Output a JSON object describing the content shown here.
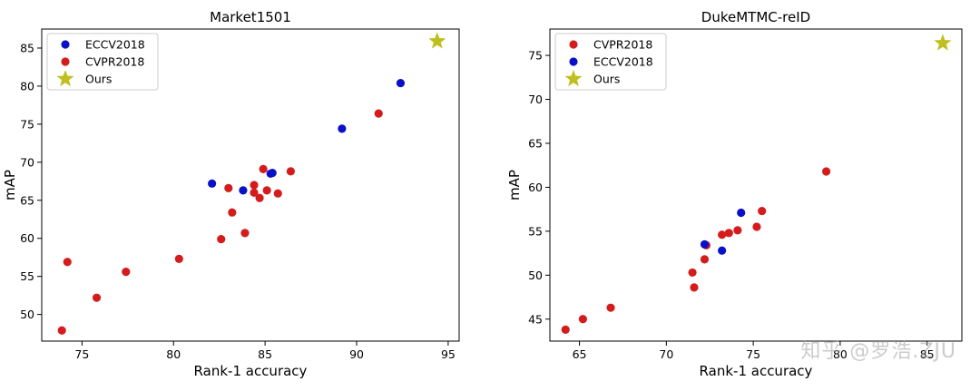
{
  "watermark": "知乎 @罗浩.ZJU",
  "chart_data": [
    {
      "type": "scatter",
      "title": "Market1501",
      "xlabel": "Rank-1 accuracy",
      "ylabel": "mAP",
      "xlim": [
        72.8,
        95.6
      ],
      "ylim": [
        46.5,
        87.5
      ],
      "xticks": [
        75,
        80,
        85,
        90,
        95
      ],
      "yticks": [
        50,
        55,
        60,
        65,
        70,
        75,
        80,
        85
      ],
      "legend_position": "top-left",
      "series": [
        {
          "name": "ECCV2018",
          "color": "#0a10c8",
          "marker": "circle",
          "points": [
            [
              82.1,
              67.2
            ],
            [
              83.8,
              66.3
            ],
            [
              85.3,
              68.5
            ],
            [
              85.4,
              68.6
            ],
            [
              89.2,
              74.4
            ],
            [
              92.4,
              80.4
            ]
          ]
        },
        {
          "name": "CVPR2018",
          "color": "#d41c1c",
          "marker": "circle",
          "points": [
            [
              73.9,
              47.9
            ],
            [
              74.2,
              56.9
            ],
            [
              75.8,
              52.2
            ],
            [
              77.4,
              55.6
            ],
            [
              80.3,
              57.3
            ],
            [
              82.6,
              59.9
            ],
            [
              83.0,
              66.6
            ],
            [
              83.2,
              63.4
            ],
            [
              83.9,
              60.7
            ],
            [
              84.4,
              66.0
            ],
            [
              84.4,
              67.0
            ],
            [
              84.7,
              65.3
            ],
            [
              84.9,
              69.1
            ],
            [
              85.1,
              66.3
            ],
            [
              85.7,
              65.9
            ],
            [
              86.4,
              68.8
            ],
            [
              91.2,
              76.4
            ]
          ]
        },
        {
          "name": "Ours",
          "color": "#bfbf1f",
          "marker": "star",
          "points": [
            [
              94.4,
              85.9
            ]
          ]
        }
      ]
    },
    {
      "type": "scatter",
      "title": "DukeMTMC-reID",
      "xlabel": "Rank-1 accuracy",
      "ylabel": "mAP",
      "xlim": [
        63.3,
        87.0
      ],
      "ylim": [
        42.5,
        78.0
      ],
      "xticks": [
        65,
        70,
        75,
        80,
        85
      ],
      "yticks": [
        45,
        50,
        55,
        60,
        65,
        70,
        75
      ],
      "legend_position": "top-left",
      "series": [
        {
          "name": "CVPR2018",
          "color": "#d41c1c",
          "marker": "circle",
          "points": [
            [
              64.2,
              43.8
            ],
            [
              65.2,
              45.0
            ],
            [
              66.8,
              46.3
            ],
            [
              71.5,
              50.3
            ],
            [
              71.6,
              48.6
            ],
            [
              72.2,
              51.8
            ],
            [
              72.3,
              53.4
            ],
            [
              73.2,
              54.6
            ],
            [
              73.6,
              54.8
            ],
            [
              74.1,
              55.1
            ],
            [
              75.2,
              55.5
            ],
            [
              75.5,
              57.3
            ],
            [
              79.2,
              61.8
            ]
          ]
        },
        {
          "name": "ECCV2018",
          "color": "#0a10c8",
          "marker": "circle",
          "points": [
            [
              72.2,
              53.5
            ],
            [
              73.2,
              52.8
            ],
            [
              74.3,
              57.1
            ]
          ]
        },
        {
          "name": "Ours",
          "color": "#bfbf1f",
          "marker": "star",
          "points": [
            [
              85.9,
              76.4
            ]
          ]
        }
      ]
    }
  ]
}
